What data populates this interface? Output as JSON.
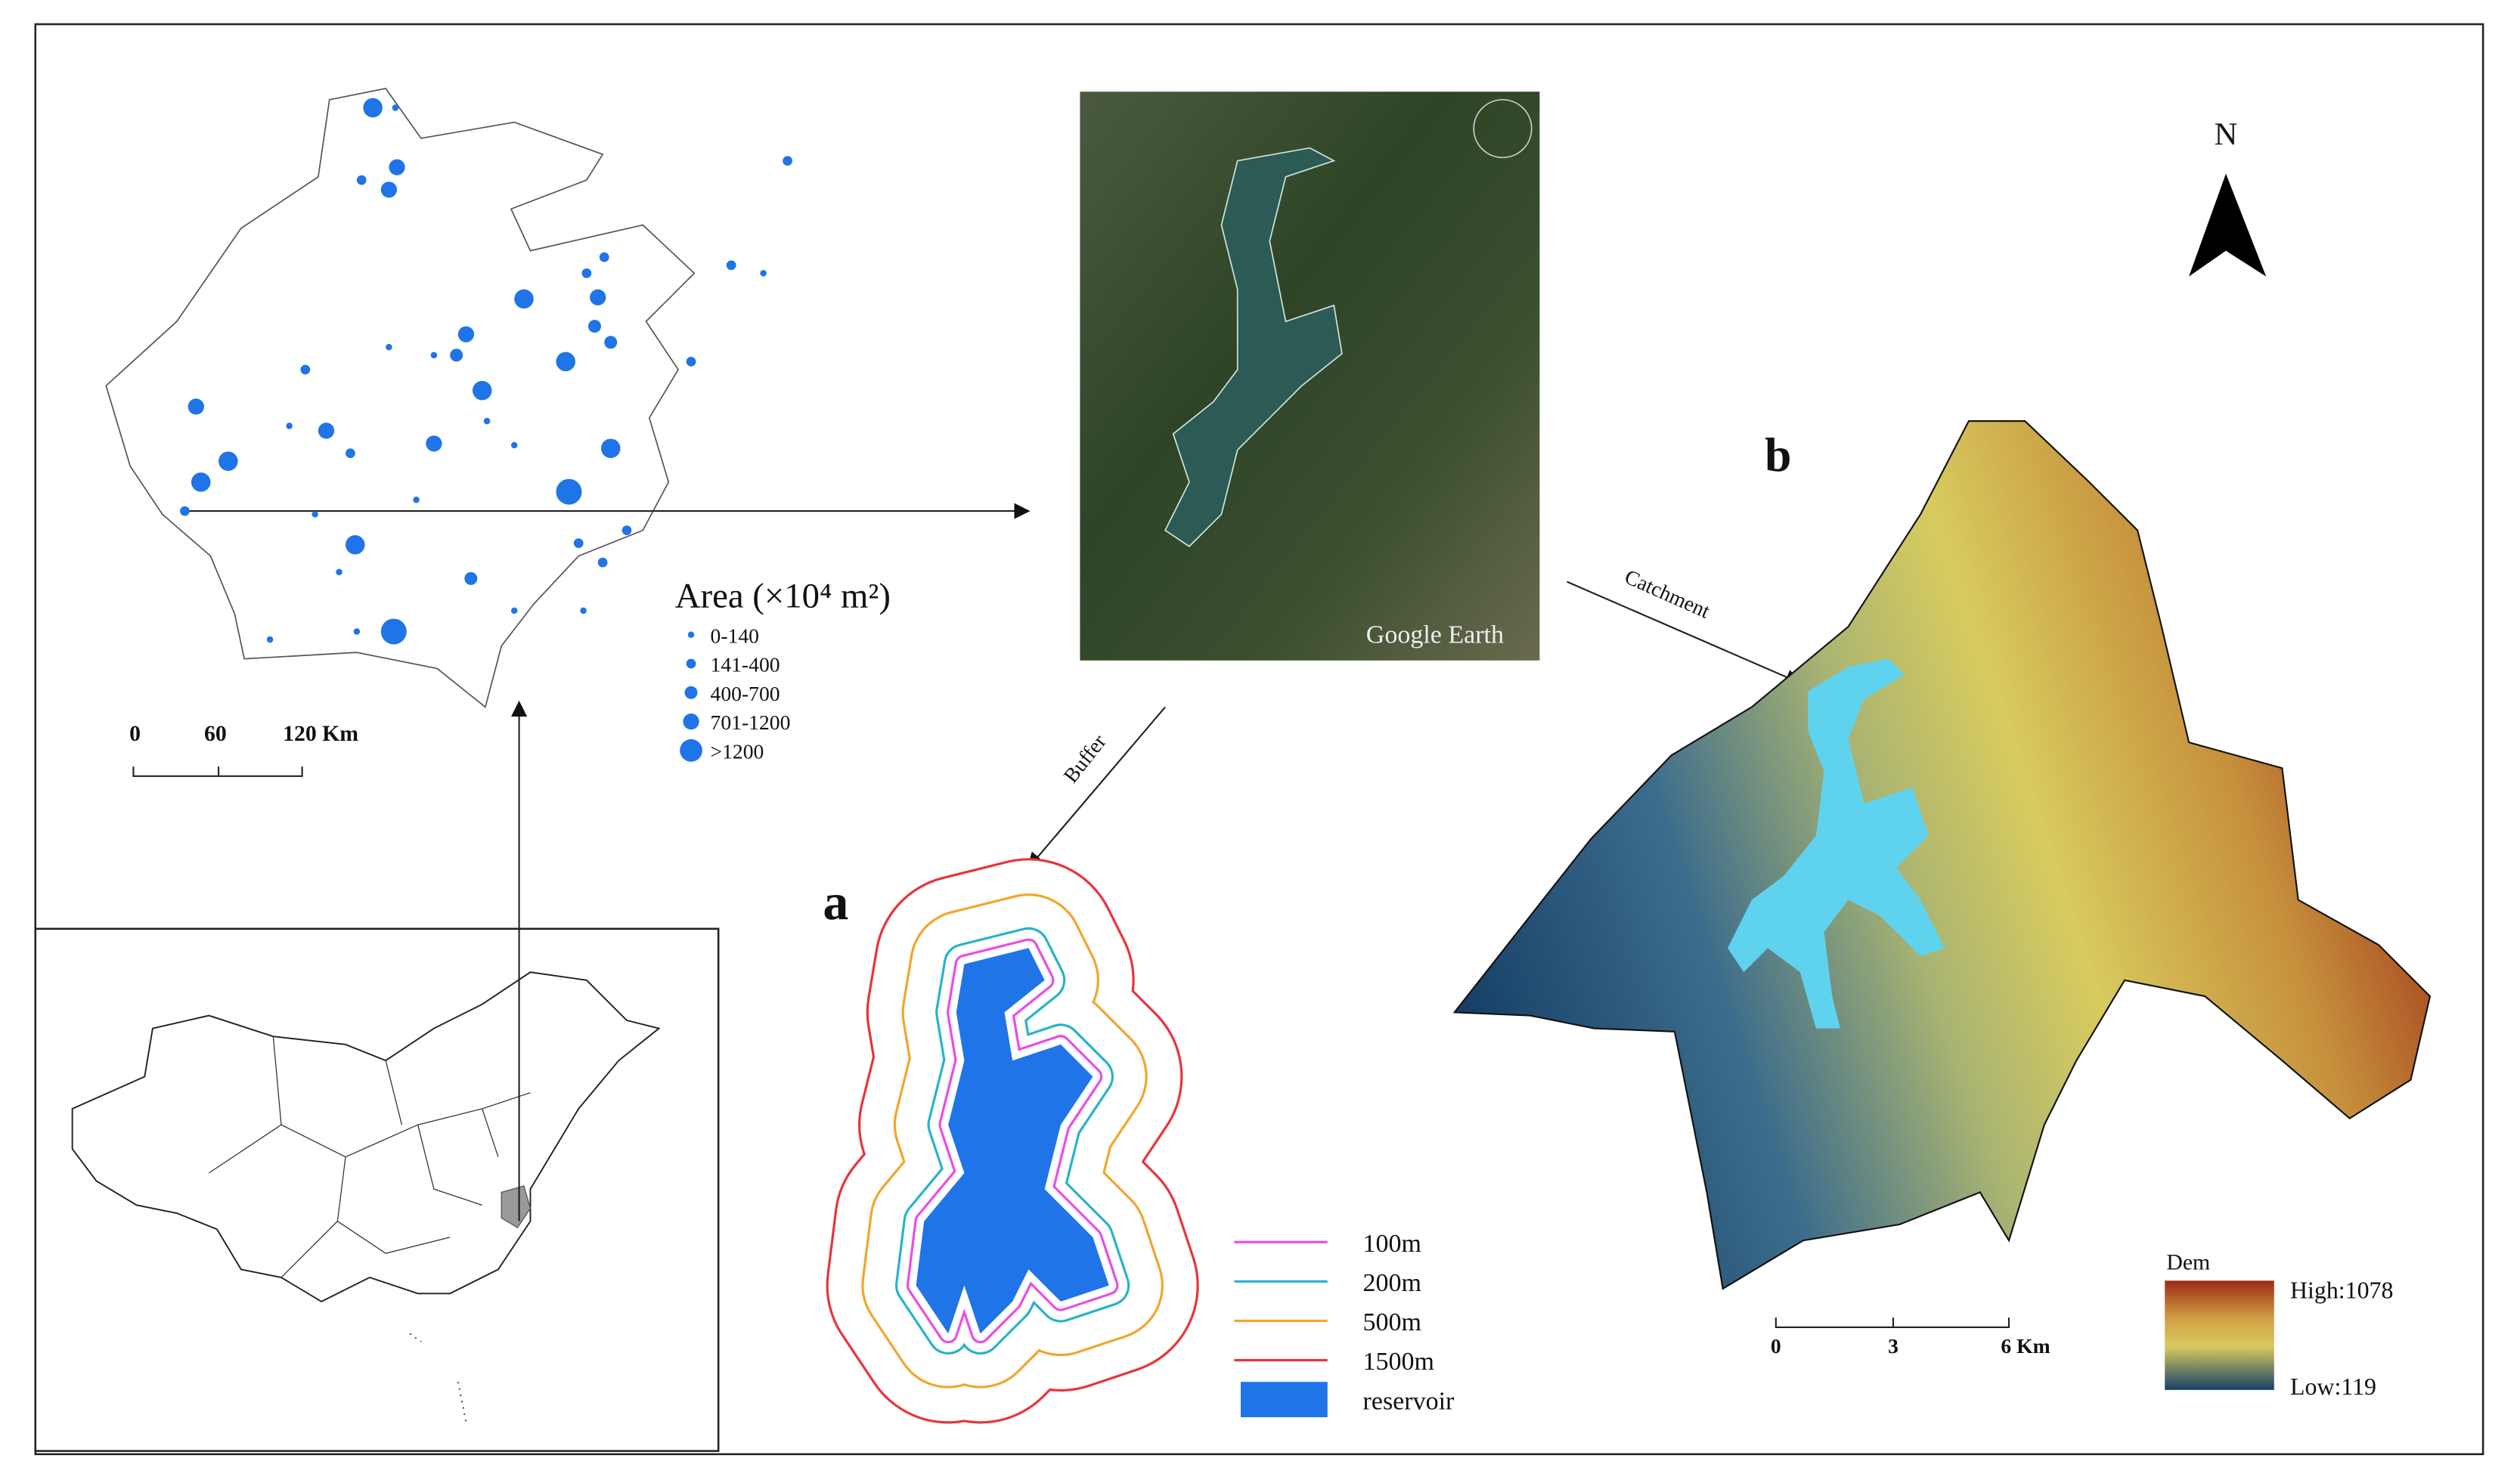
{
  "province_map": {
    "legend_title": "Area (×10⁴ m²)",
    "legend_items": [
      "0-140",
      "141-400",
      "400-700",
      "701-1200",
      ">1200"
    ],
    "scale_labels": [
      "0",
      "60",
      "120 Km"
    ]
  },
  "satellite": {
    "watermark": "Google Earth"
  },
  "arrows": {
    "buffer": "Buffer",
    "catchment": "Catchment"
  },
  "panel_a": {
    "label": "a",
    "legend": [
      "100m",
      "200m",
      "500m",
      "1500m",
      "reservoir"
    ]
  },
  "panel_b": {
    "label": "b",
    "north": "N",
    "scale_labels": [
      "0",
      "3",
      "6 Km"
    ],
    "dem_title": "Dem",
    "dem_high": "High:1078",
    "dem_low": "Low:119"
  }
}
